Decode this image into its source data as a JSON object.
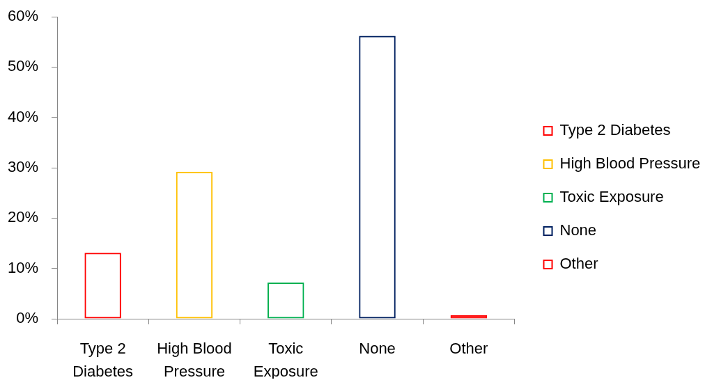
{
  "chart_data": {
    "type": "bar",
    "categories": [
      "Type 2 Diabetes",
      "High Blood Pressure",
      "Toxic Exposure",
      "None",
      "Other"
    ],
    "series": [
      {
        "name": "Type 2 Diabetes",
        "color": "#ff0000",
        "values": [
          13.1,
          null,
          null,
          null,
          null
        ]
      },
      {
        "name": "High Blood Pressure",
        "color": "#ffc000",
        "values": [
          null,
          29.2,
          null,
          null,
          null
        ]
      },
      {
        "name": "Toxic Exposure",
        "color": "#00b050",
        "values": [
          null,
          null,
          7.2,
          null,
          null
        ]
      },
      {
        "name": "None",
        "color": "#002060",
        "values": [
          null,
          null,
          null,
          56.2,
          null
        ]
      },
      {
        "name": "Other",
        "color": "#ff0000",
        "values": [
          null,
          null,
          null,
          null,
          0.7
        ]
      }
    ],
    "ylim": [
      0,
      60
    ],
    "yticks": [
      {
        "value": 0,
        "label": "0%"
      },
      {
        "value": 10,
        "label": "10%"
      },
      {
        "value": 20,
        "label": "20%"
      },
      {
        "value": 30,
        "label": "30%"
      },
      {
        "value": 40,
        "label": "40%"
      },
      {
        "value": 50,
        "label": "50%"
      },
      {
        "value": 60,
        "label": "60%"
      }
    ],
    "grid": false,
    "legend": "right"
  }
}
